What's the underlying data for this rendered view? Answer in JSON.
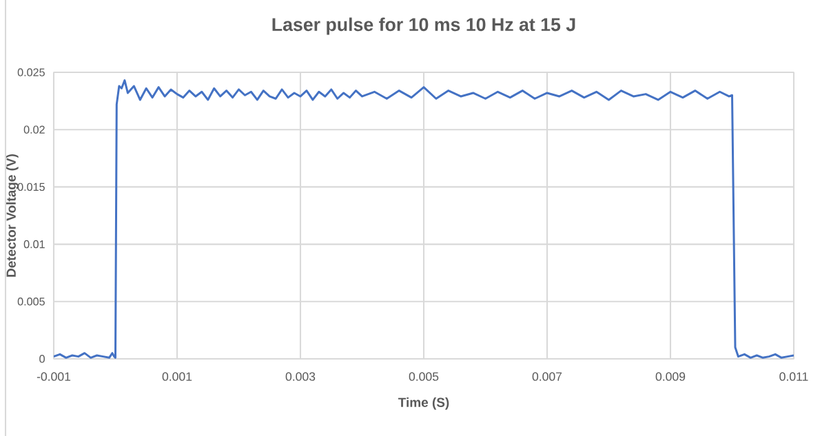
{
  "chart_data": {
    "type": "line",
    "title": "Laser pulse for 10 ms 10 Hz at 15 J",
    "xlabel": "Time (S)",
    "ylabel": "Detector Voltage (V)",
    "xlim": [
      -0.001,
      0.011
    ],
    "xticks": [
      -0.001,
      0.001,
      0.003,
      0.005,
      0.007,
      0.009,
      0.011
    ],
    "ylim": [
      0,
      0.025
    ],
    "yticks": [
      0,
      0.005,
      0.01,
      0.015,
      0.02,
      0.025
    ],
    "grid": true,
    "series": [
      {
        "color": "#4472c4",
        "x": [
          -0.001,
          -0.0009,
          -0.0008,
          -0.0007,
          -0.0006,
          -0.0005,
          -0.0004,
          -0.0003,
          -0.0002,
          -0.0001,
          -5e-05,
          -2e-05,
          0.0,
          2e-05,
          6e-05,
          0.0001,
          0.00015,
          0.0002,
          0.0003,
          0.0004,
          0.0005,
          0.0006,
          0.0007,
          0.0008,
          0.0009,
          0.001,
          0.0011,
          0.0012,
          0.0013,
          0.0014,
          0.0015,
          0.0016,
          0.0017,
          0.0018,
          0.0019,
          0.002,
          0.0021,
          0.0022,
          0.0023,
          0.0024,
          0.0025,
          0.0026,
          0.0027,
          0.0028,
          0.0029,
          0.003,
          0.0031,
          0.0032,
          0.0033,
          0.0034,
          0.0035,
          0.0036,
          0.0037,
          0.0038,
          0.0039,
          0.004,
          0.0042,
          0.0044,
          0.0046,
          0.0048,
          0.005,
          0.0052,
          0.0054,
          0.0056,
          0.0058,
          0.006,
          0.0062,
          0.0064,
          0.0066,
          0.0068,
          0.007,
          0.0072,
          0.0074,
          0.0076,
          0.0078,
          0.008,
          0.0082,
          0.0084,
          0.0086,
          0.0088,
          0.009,
          0.0092,
          0.0094,
          0.0096,
          0.0098,
          0.00995,
          0.01,
          0.01005,
          0.0101,
          0.0102,
          0.0103,
          0.0104,
          0.0105,
          0.0106,
          0.0107,
          0.0108,
          0.0109,
          0.011
        ],
        "values": [
          0.0002,
          0.0004,
          0.0001,
          0.0003,
          0.0002,
          0.0005,
          0.0001,
          0.0003,
          0.0002,
          0.0001,
          0.0005,
          0.0002,
          0.0001,
          0.0222,
          0.0238,
          0.0236,
          0.0243,
          0.0232,
          0.0238,
          0.0226,
          0.0236,
          0.0228,
          0.0237,
          0.0229,
          0.0235,
          0.0231,
          0.0228,
          0.0234,
          0.0229,
          0.0233,
          0.0226,
          0.0236,
          0.0229,
          0.0234,
          0.0228,
          0.0235,
          0.023,
          0.0233,
          0.0226,
          0.0234,
          0.0229,
          0.0227,
          0.0235,
          0.0228,
          0.0232,
          0.0229,
          0.0234,
          0.0226,
          0.0233,
          0.0229,
          0.0235,
          0.0227,
          0.0232,
          0.0228,
          0.0234,
          0.0229,
          0.0233,
          0.0227,
          0.0234,
          0.0228,
          0.0237,
          0.0227,
          0.0234,
          0.0229,
          0.0232,
          0.0227,
          0.0233,
          0.0228,
          0.0234,
          0.0227,
          0.0232,
          0.0229,
          0.0234,
          0.0228,
          0.0233,
          0.0226,
          0.0234,
          0.0229,
          0.0231,
          0.0226,
          0.0233,
          0.0228,
          0.0234,
          0.0227,
          0.0233,
          0.0229,
          0.023,
          0.001,
          0.0002,
          0.0004,
          0.0001,
          0.0003,
          0.0001,
          0.0002,
          0.0004,
          0.0001,
          0.0002,
          0.0003
        ]
      }
    ]
  }
}
